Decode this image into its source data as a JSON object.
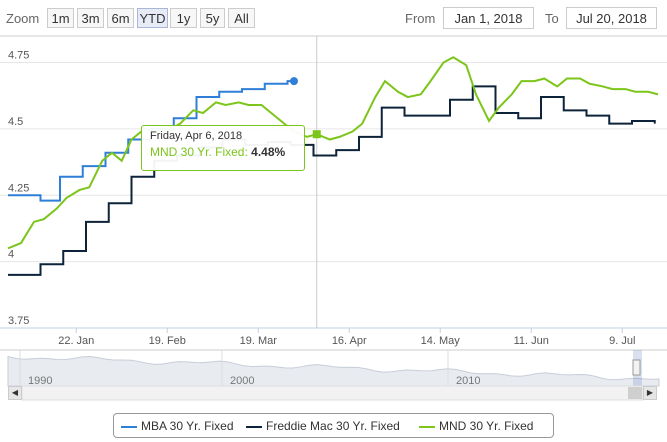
{
  "range_selector": {
    "zoom_label": "Zoom",
    "buttons": [
      "1m",
      "3m",
      "6m",
      "YTD",
      "1y",
      "5y",
      "All"
    ],
    "active": "YTD",
    "from_label": "From",
    "from_value": "Jan 1, 2018",
    "to_label": "To",
    "to_value": "Jul 20, 2018"
  },
  "tooltip": {
    "date": "Friday, Apr 6, 2018",
    "series": "MND 30 Yr. Fixed",
    "separator": ":",
    "value": "4.48%"
  },
  "colors": {
    "mba": "#2f7ed8",
    "freddie": "#0d233a",
    "mnd": "#7cc51a",
    "grid": "#e6e6e6",
    "crosshair": "#cccccc",
    "navigator_fill": "#e8ebf0"
  },
  "navigator": {
    "year_labels": [
      "1990",
      "2000",
      "2010"
    ]
  },
  "chart_data": {
    "type": "line",
    "title": "",
    "xlabel": "",
    "ylabel": "",
    "x_range": [
      "2018-01-01",
      "2018-07-20"
    ],
    "ylim": [
      3.75,
      4.85
    ],
    "y_ticks": [
      "3.75",
      "4",
      "4.25",
      "4.5",
      "4.75"
    ],
    "x_ticks": [
      {
        "date": "2018-01-22",
        "label": "22. Jan"
      },
      {
        "date": "2018-02-19",
        "label": "19. Feb"
      },
      {
        "date": "2018-03-19",
        "label": "19. Mar"
      },
      {
        "date": "2018-04-16",
        "label": "16. Apr"
      },
      {
        "date": "2018-05-14",
        "label": "14. May"
      },
      {
        "date": "2018-06-11",
        "label": "11. Jun"
      },
      {
        "date": "2018-07-09",
        "label": "9. Jul"
      }
    ],
    "crosshair_date": "2018-04-06",
    "legend_position": "bottom-center",
    "series": [
      {
        "name": "MBA 30 Yr. Fixed",
        "color": "#2f7ed8",
        "step": true,
        "points": [
          [
            "2018-01-01",
            4.25
          ],
          [
            "2018-01-11",
            4.23
          ],
          [
            "2018-01-17",
            4.32
          ],
          [
            "2018-01-24",
            4.36
          ],
          [
            "2018-01-31",
            4.41
          ],
          [
            "2018-02-07",
            4.46
          ],
          [
            "2018-02-14",
            4.5
          ],
          [
            "2018-02-21",
            4.54
          ],
          [
            "2018-02-28",
            4.62
          ],
          [
            "2018-03-07",
            4.64
          ],
          [
            "2018-03-14",
            4.65
          ],
          [
            "2018-03-21",
            4.67
          ],
          [
            "2018-03-28",
            4.68
          ],
          [
            "2018-03-30",
            4.68
          ]
        ],
        "end_marker": true
      },
      {
        "name": "Freddie Mac 30 Yr. Fixed",
        "color": "#0d233a",
        "step": true,
        "points": [
          [
            "2018-01-01",
            3.95
          ],
          [
            "2018-01-04",
            3.95
          ],
          [
            "2018-01-11",
            3.99
          ],
          [
            "2018-01-18",
            4.04
          ],
          [
            "2018-01-25",
            4.15
          ],
          [
            "2018-02-01",
            4.22
          ],
          [
            "2018-02-08",
            4.32
          ],
          [
            "2018-02-15",
            4.38
          ],
          [
            "2018-02-22",
            4.4
          ],
          [
            "2018-03-01",
            4.43
          ],
          [
            "2018-03-08",
            4.46
          ],
          [
            "2018-03-15",
            4.44
          ],
          [
            "2018-03-22",
            4.45
          ],
          [
            "2018-03-29",
            4.44
          ],
          [
            "2018-04-05",
            4.4
          ],
          [
            "2018-04-12",
            4.42
          ],
          [
            "2018-04-19",
            4.47
          ],
          [
            "2018-04-26",
            4.58
          ],
          [
            "2018-05-03",
            4.55
          ],
          [
            "2018-05-10",
            4.55
          ],
          [
            "2018-05-17",
            4.61
          ],
          [
            "2018-05-24",
            4.66
          ],
          [
            "2018-05-31",
            4.56
          ],
          [
            "2018-06-07",
            4.54
          ],
          [
            "2018-06-14",
            4.62
          ],
          [
            "2018-06-21",
            4.57
          ],
          [
            "2018-06-28",
            4.55
          ],
          [
            "2018-07-05",
            4.52
          ],
          [
            "2018-07-12",
            4.53
          ],
          [
            "2018-07-19",
            4.52
          ]
        ]
      },
      {
        "name": "MND 30 Yr. Fixed",
        "color": "#7cc51a",
        "step": false,
        "points": [
          [
            "2018-01-01",
            4.05
          ],
          [
            "2018-01-03",
            4.06
          ],
          [
            "2018-01-05",
            4.07
          ],
          [
            "2018-01-09",
            4.15
          ],
          [
            "2018-01-12",
            4.16
          ],
          [
            "2018-01-16",
            4.2
          ],
          [
            "2018-01-19",
            4.24
          ],
          [
            "2018-01-23",
            4.27
          ],
          [
            "2018-01-26",
            4.28
          ],
          [
            "2018-01-30",
            4.38
          ],
          [
            "2018-02-02",
            4.41
          ],
          [
            "2018-02-05",
            4.38
          ],
          [
            "2018-02-08",
            4.46
          ],
          [
            "2018-02-12",
            4.5
          ],
          [
            "2018-02-15",
            4.49
          ],
          [
            "2018-02-20",
            4.5
          ],
          [
            "2018-02-23",
            4.52
          ],
          [
            "2018-02-27",
            4.57
          ],
          [
            "2018-03-02",
            4.56
          ],
          [
            "2018-03-06",
            4.6
          ],
          [
            "2018-03-09",
            4.59
          ],
          [
            "2018-03-13",
            4.6
          ],
          [
            "2018-03-16",
            4.59
          ],
          [
            "2018-03-20",
            4.59
          ],
          [
            "2018-03-23",
            4.56
          ],
          [
            "2018-03-27",
            4.52
          ],
          [
            "2018-03-30",
            4.49
          ],
          [
            "2018-04-03",
            4.47
          ],
          [
            "2018-04-06",
            4.48
          ],
          [
            "2018-04-10",
            4.46
          ],
          [
            "2018-04-13",
            4.47
          ],
          [
            "2018-04-17",
            4.49
          ],
          [
            "2018-04-20",
            4.52
          ],
          [
            "2018-04-24",
            4.62
          ],
          [
            "2018-04-27",
            4.68
          ],
          [
            "2018-05-01",
            4.64
          ],
          [
            "2018-05-04",
            4.62
          ],
          [
            "2018-05-08",
            4.63
          ],
          [
            "2018-05-11",
            4.68
          ],
          [
            "2018-05-15",
            4.75
          ],
          [
            "2018-05-18",
            4.77
          ],
          [
            "2018-05-22",
            4.74
          ],
          [
            "2018-05-25",
            4.63
          ],
          [
            "2018-05-29",
            4.53
          ],
          [
            "2018-06-01",
            4.58
          ],
          [
            "2018-06-05",
            4.63
          ],
          [
            "2018-06-08",
            4.68
          ],
          [
            "2018-06-12",
            4.68
          ],
          [
            "2018-06-15",
            4.69
          ],
          [
            "2018-06-19",
            4.66
          ],
          [
            "2018-06-22",
            4.69
          ],
          [
            "2018-06-26",
            4.69
          ],
          [
            "2018-06-29",
            4.67
          ],
          [
            "2018-07-03",
            4.66
          ],
          [
            "2018-07-06",
            4.65
          ],
          [
            "2018-07-10",
            4.65
          ],
          [
            "2018-07-13",
            4.64
          ],
          [
            "2018-07-17",
            4.64
          ],
          [
            "2018-07-20",
            4.63
          ]
        ],
        "highlight_point": [
          "2018-04-06",
          4.48
        ]
      }
    ]
  }
}
